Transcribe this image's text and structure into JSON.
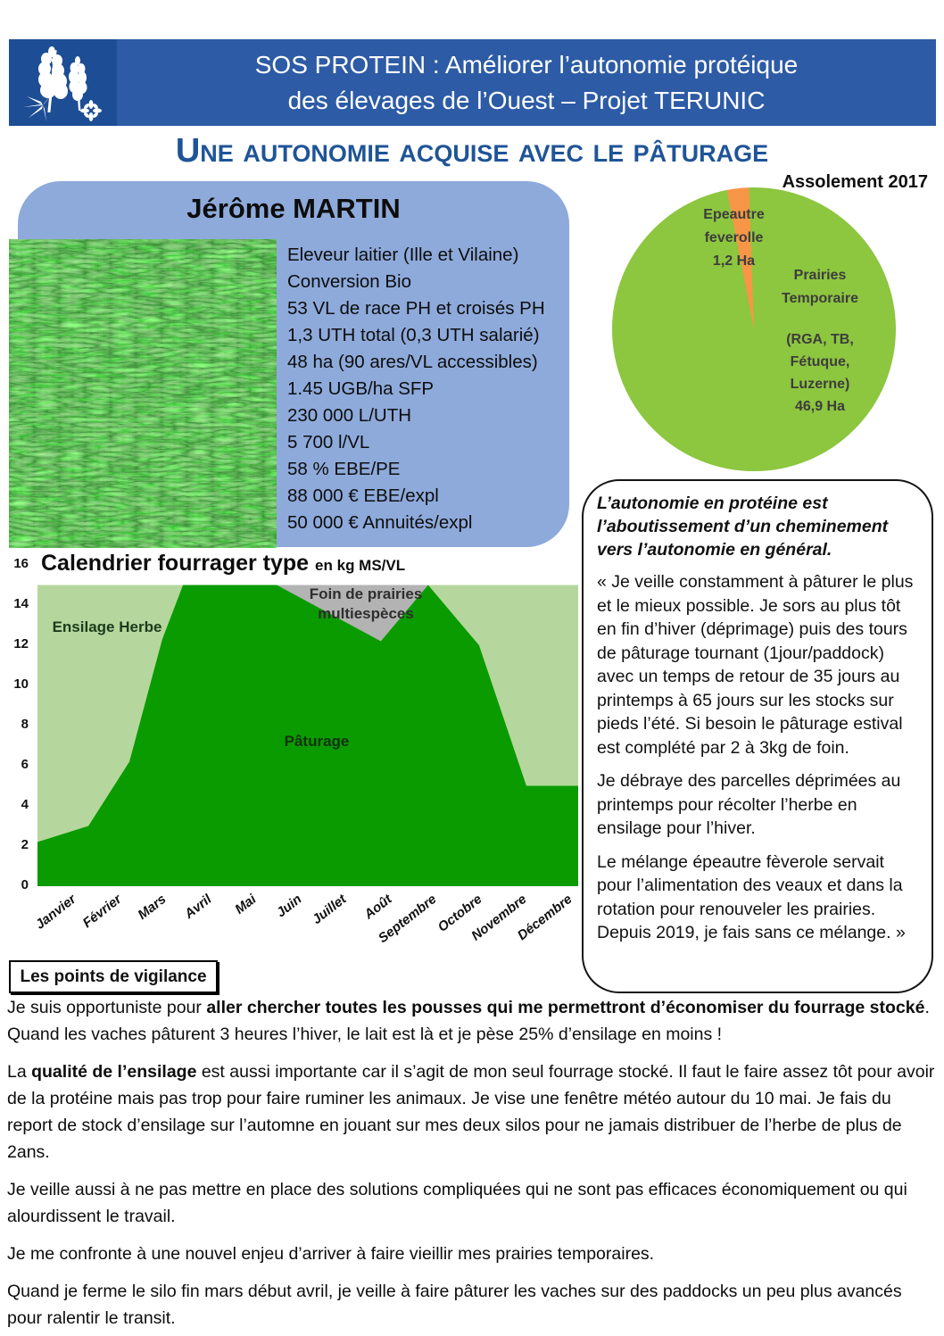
{
  "header": {
    "title_line1": "SOS PROTEIN : Améliorer l’autonomie protéique",
    "title_line2": "des élevages de l’Ouest – Projet TERUNIC"
  },
  "page_title": "Une autonomie acquise avec le pâturage",
  "profile": {
    "name": "Jérôme MARTIN",
    "facts": [
      "Eleveur laitier (Ille et Vilaine)",
      "Conversion Bio",
      "53 VL de race PH et croisés PH",
      "1,3 UTH total (0,3 UTH salarié)",
      "48 ha (90 ares/VL accessibles)",
      "1.45 UGB/ha SFP",
      "230 000 L/UTH",
      "5 700 l/VL",
      "58 % EBE/PE",
      "88 000 € EBE/expl",
      "50 000 € Annuités/expl"
    ]
  },
  "chart_data": [
    {
      "type": "pie",
      "title": "Assolement 2017",
      "unit": "Ha",
      "start_deg": -11,
      "slices": [
        {
          "label": "Epeautre feverolle",
          "value": 1.2,
          "display": "1,2 Ha",
          "color": "#f79646",
          "label_lines": [
            "Epeautre",
            "feverolle",
            "1,2 Ha"
          ]
        },
        {
          "label": "Prairies Temporaire (RGA, TB, Fétuque, Luzerne)",
          "value": 46.9,
          "display": "46,9 Ha",
          "color": "#8dc63f",
          "label_lines_1": [
            "Prairies",
            "Temporaire"
          ],
          "label_lines_2": [
            "(RGA, TB,",
            "Fétuque,",
            "Luzerne)",
            "46,9 Ha"
          ]
        }
      ]
    },
    {
      "type": "area",
      "title": "Calendrier fourrager type",
      "title_suffix": "en kg MS/VL",
      "ylim": [
        0,
        16
      ],
      "ytick_step": 2,
      "total_level": 15,
      "grid": false,
      "months": [
        "Janvier",
        "Février",
        "Mars",
        "Avril",
        "Mai",
        "Juin",
        "Juillet",
        "Août",
        "Septembre",
        "Octobre",
        "Novembre",
        "Décembre"
      ],
      "series": [
        {
          "name": "Pâturage",
          "color": "#0a9b00",
          "points": [
            [
              0,
              2.2
            ],
            [
              1.13,
              3
            ],
            [
              2.04,
              6.2
            ],
            [
              2.77,
              12.3
            ],
            [
              3.23,
              15
            ],
            [
              5.31,
              15
            ],
            [
              7.62,
              12.2
            ],
            [
              8.67,
              15
            ],
            [
              9.8,
              12
            ],
            [
              10.85,
              5
            ],
            [
              12,
              5
            ]
          ]
        },
        {
          "name": "Ensilage Herbe",
          "color": "#b5d79d",
          "role": "background_to_total"
        },
        {
          "name": "Foin  de prairies multiespèces",
          "color": "#b3b3b3",
          "region": [
            5.31,
            8.67
          ]
        }
      ]
    }
  ],
  "quote": {
    "heading": "L’autonomie en protéine est l’aboutissement d’un cheminement vers l’autonomie en général.",
    "paragraphs": [
      "« Je veille  constamment à pâturer le plus et le mieux possible. Je sors au plus tôt en fin d’hiver (déprimage) puis des tours de pâturage tournant (1jour/paddock) avec un temps de retour de 35 jours au printemps à 65 jours sur les stocks sur pieds l’été.  Si besoin le pâturage estival est complété par 2 à 3kg de foin.",
      "Je débraye des parcelles déprimées au printemps pour récolter l’herbe en ensilage pour l’hiver.",
      "Le mélange épeautre fèverole servait pour l’alimentation des veaux et dans la rotation pour renouveler les prairies. Depuis 2019, je fais sans ce mélange. »"
    ]
  },
  "vigilance": {
    "title": "Les points de vigilance",
    "paragraphs": [
      [
        {
          "t": "Je suis opportuniste pour "
        },
        {
          "t": "aller chercher toutes les pousses qui me permettront d’économiser  du fourrage stocké",
          "b": true
        },
        {
          "t": ". Quand les vaches pâturent  3 heures  l’hiver, le lait est là et je pèse 25% d’ensilage en moins !"
        }
      ],
      [
        {
          "t": "La "
        },
        {
          "t": "qualité de l’ensilage",
          "b": true
        },
        {
          "t": " est aussi importante car il s’agit de mon seul fourrage stocké. Il faut le faire assez tôt pour avoir de la protéine mais pas trop pour faire ruminer les animaux. Je vise une fenêtre météo autour du 10 mai. Je fais du report de stock d’ensilage sur l’automne en jouant sur mes deux silos pour ne jamais distribuer de l’herbe de plus de 2ans."
        }
      ],
      [
        {
          "t": " Je veille aussi à ne pas mettre en place des solutions compliquées qui ne sont pas efficaces économiquement  ou qui alourdissent le travail."
        }
      ],
      [
        {
          "t": " Je me confronte à une nouvel  enjeu d’arriver à faire vieillir mes prairies temporaires."
        }
      ],
      [
        {
          "t": "Quand je ferme le silo fin mars début avril, je veille à faire pâturer les vaches sur des paddocks un peu plus avancés pour ralentir le transit."
        }
      ]
    ]
  }
}
